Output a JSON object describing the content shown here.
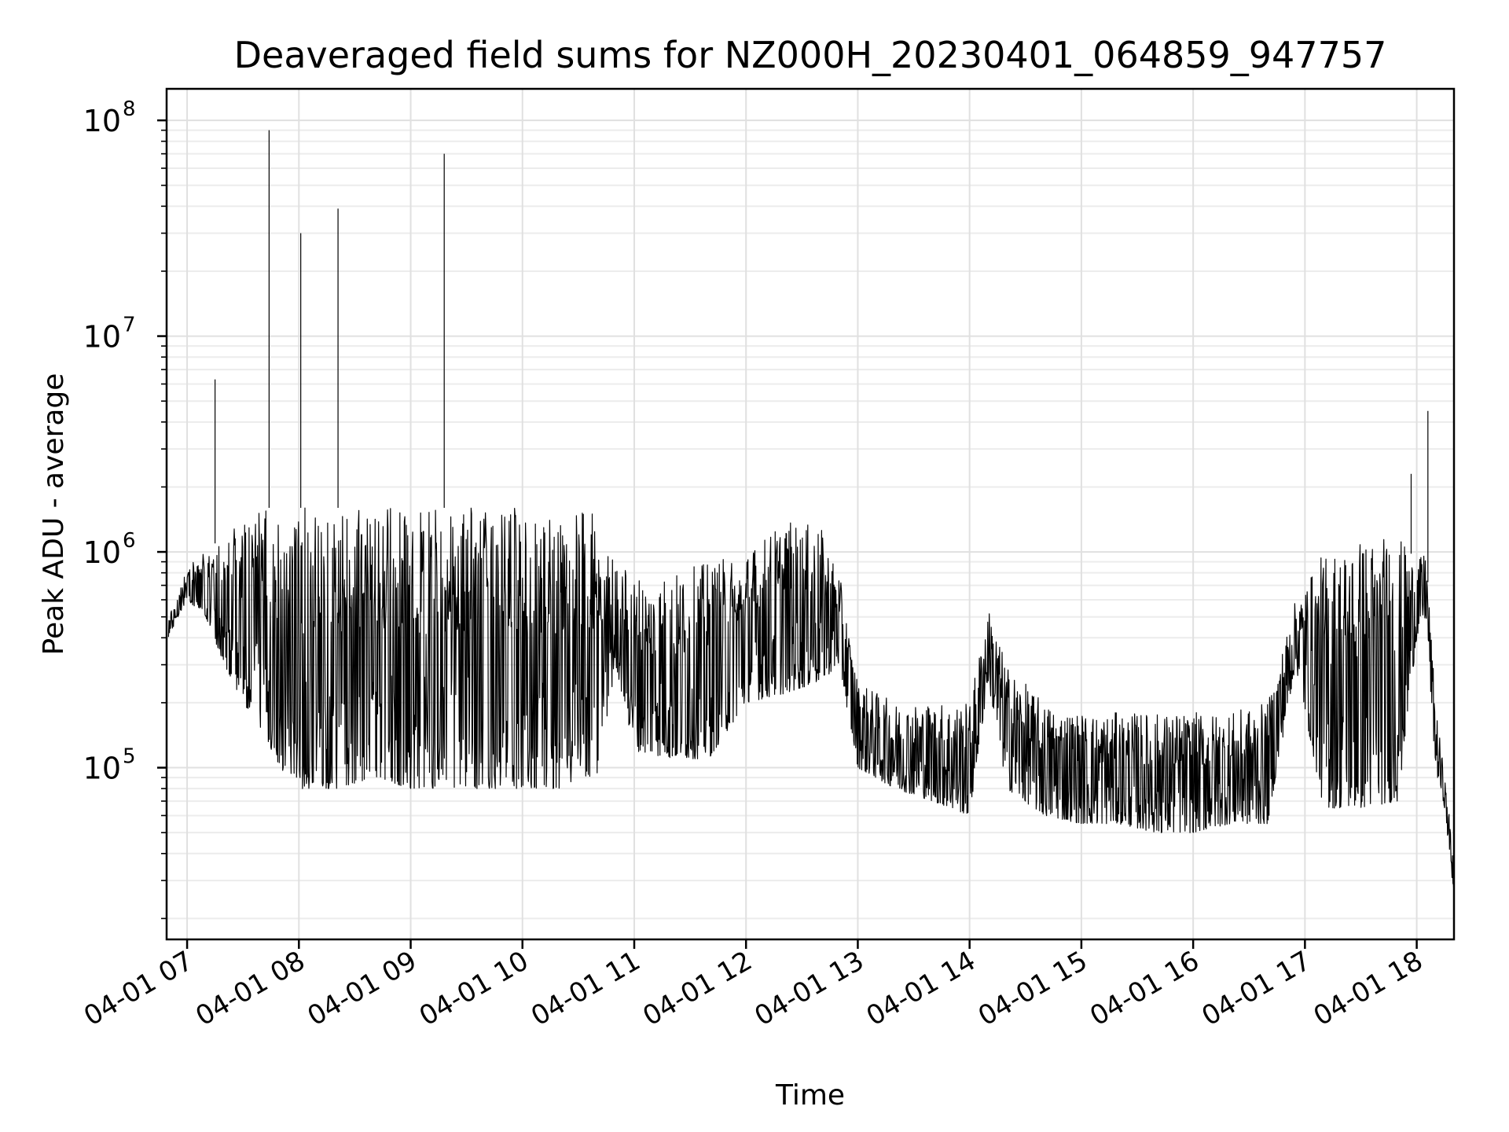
{
  "chart_data": {
    "type": "line",
    "title": "Deaveraged field sums for NZ000H_20230401_064859_947757",
    "xlabel": "Time",
    "ylabel": "Peak ADU - average",
    "yscale": "log",
    "ylim": [
      16000,
      140000000
    ],
    "xlim": [
      "2023-04-01 06:49",
      "2023-04-01 18:20"
    ],
    "grid": true,
    "legend": "none",
    "line_color": "#000000",
    "x_tick_labels": [
      "04-01 07",
      "04-01 08",
      "04-01 09",
      "04-01 10",
      "04-01 11",
      "04-01 12",
      "04-01 13",
      "04-01 14",
      "04-01 15",
      "04-01 16",
      "04-01 17",
      "04-01 18"
    ],
    "x_ticks": [
      "2023-04-01 07:00",
      "2023-04-01 08:00",
      "2023-04-01 09:00",
      "2023-04-01 10:00",
      "2023-04-01 11:00",
      "2023-04-01 12:00",
      "2023-04-01 13:00",
      "2023-04-01 14:00",
      "2023-04-01 15:00",
      "2023-04-01 16:00",
      "2023-04-01 17:00",
      "2023-04-01 18:00"
    ],
    "y_ticks": [
      {
        "base": "10",
        "exp": "5",
        "value": 100000
      },
      {
        "base": "10",
        "exp": "6",
        "value": 1000000
      },
      {
        "base": "10",
        "exp": "7",
        "value": 10000000
      },
      {
        "base": "10",
        "exp": "8",
        "value": 100000000
      }
    ],
    "series": [
      {
        "x": [
          "2023-04-01 06:50",
          "2023-04-01 06:55",
          "2023-04-01 07:00",
          "2023-04-01 07:10",
          "2023-04-01 07:20",
          "2023-04-01 07:30",
          "2023-04-01 07:40",
          "2023-04-01 07:50",
          "2023-04-01 08:00",
          "2023-04-01 08:20",
          "2023-04-01 08:40",
          "2023-04-01 09:00",
          "2023-04-01 09:20",
          "2023-04-01 09:40",
          "2023-04-01 10:00",
          "2023-04-01 10:20",
          "2023-04-01 10:40",
          "2023-04-01 10:50",
          "2023-04-01 11:00",
          "2023-04-01 11:20",
          "2023-04-01 11:40",
          "2023-04-01 12:00",
          "2023-04-01 12:20",
          "2023-04-01 12:40",
          "2023-04-01 12:50",
          "2023-04-01 13:00",
          "2023-04-01 13:20",
          "2023-04-01 13:40",
          "2023-04-01 14:00",
          "2023-04-01 14:10",
          "2023-04-01 14:20",
          "2023-04-01 14:40",
          "2023-04-01 15:00",
          "2023-04-01 15:20",
          "2023-04-01 15:40",
          "2023-04-01 16:00",
          "2023-04-01 16:20",
          "2023-04-01 16:40",
          "2023-04-01 16:55",
          "2023-04-01 17:10",
          "2023-04-01 17:30",
          "2023-04-01 17:50",
          "2023-04-01 18:00",
          "2023-04-01 18:05",
          "2023-04-01 18:10",
          "2023-04-01 18:15",
          "2023-04-01 18:20"
        ],
        "low": [
          400000,
          500000,
          600000,
          500000,
          300000,
          200000,
          150000,
          100000,
          80000,
          80000,
          90000,
          80000,
          80000,
          80000,
          80000,
          80000,
          90000,
          300000,
          120000,
          110000,
          110000,
          200000,
          220000,
          250000,
          300000,
          100000,
          80000,
          70000,
          60000,
          250000,
          80000,
          60000,
          55000,
          55000,
          50000,
          50000,
          55000,
          55000,
          300000,
          65000,
          65000,
          70000,
          400000,
          500000,
          100000,
          65000,
          25000
        ],
        "high": [
          500000,
          650000,
          850000,
          1000000,
          1200000,
          1400000,
          1600000,
          1600000,
          1600000,
          1600000,
          1600000,
          1600000,
          1600000,
          1600000,
          1600000,
          1600000,
          1500000,
          900000,
          800000,
          800000,
          900000,
          1000000,
          1400000,
          1300000,
          800000,
          250000,
          200000,
          200000,
          200000,
          550000,
          300000,
          200000,
          180000,
          180000,
          180000,
          180000,
          180000,
          200000,
          600000,
          1000000,
          1200000,
          1200000,
          900000,
          1000000,
          200000,
          90000,
          40000
        ],
        "spikes": [
          {
            "x": "2023-04-01 07:15",
            "y": 6300000
          },
          {
            "x": "2023-04-01 07:44",
            "y": 90000000
          },
          {
            "x": "2023-04-01 08:01",
            "y": 30000000
          },
          {
            "x": "2023-04-01 08:21",
            "y": 39000000
          },
          {
            "x": "2023-04-01 09:18",
            "y": 70000000
          },
          {
            "x": "2023-04-01 17:57",
            "y": 2300000
          },
          {
            "x": "2023-04-01 18:06",
            "y": 4500000
          }
        ]
      }
    ]
  }
}
